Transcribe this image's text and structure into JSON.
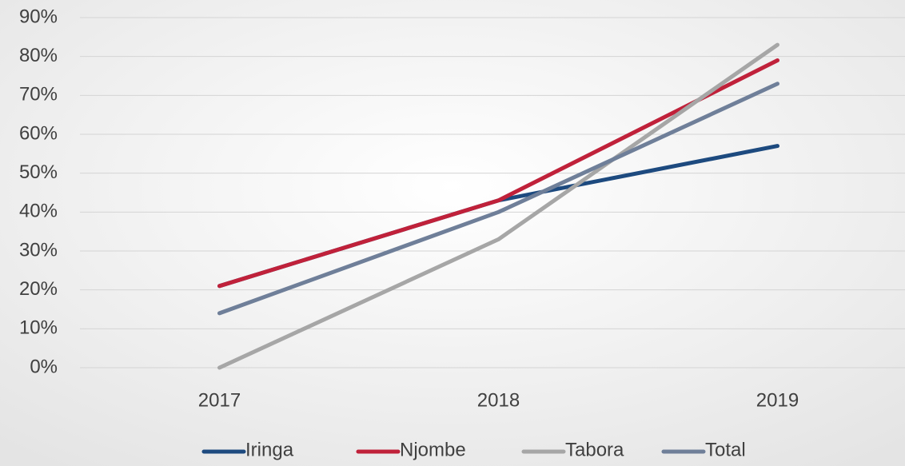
{
  "chart_data": {
    "type": "line",
    "categories": [
      "2017",
      "2018",
      "2019"
    ],
    "series": [
      {
        "name": "Iringa",
        "color": "#1d4a7f",
        "values": [
          21,
          43,
          57
        ]
      },
      {
        "name": "Njombe",
        "color": "#c0213a",
        "values": [
          21,
          43,
          79
        ]
      },
      {
        "name": "Tabora",
        "color": "#a6a6a6",
        "values": [
          0,
          33,
          83
        ]
      },
      {
        "name": "Total",
        "color": "#6f7f99",
        "values": [
          14,
          40,
          73
        ]
      }
    ],
    "ylim": [
      0,
      90
    ],
    "yticks": [
      {
        "value": 0,
        "label": "0%"
      },
      {
        "value": 10,
        "label": "10%"
      },
      {
        "value": 20,
        "label": "20%"
      },
      {
        "value": 30,
        "label": "30%"
      },
      {
        "value": 40,
        "label": "40%"
      },
      {
        "value": 50,
        "label": "50%"
      },
      {
        "value": 60,
        "label": "60%"
      },
      {
        "value": 70,
        "label": "70%"
      },
      {
        "value": 80,
        "label": "80%"
      },
      {
        "value": 90,
        "label": "90%"
      }
    ],
    "grid": true,
    "legend": "bottom"
  }
}
